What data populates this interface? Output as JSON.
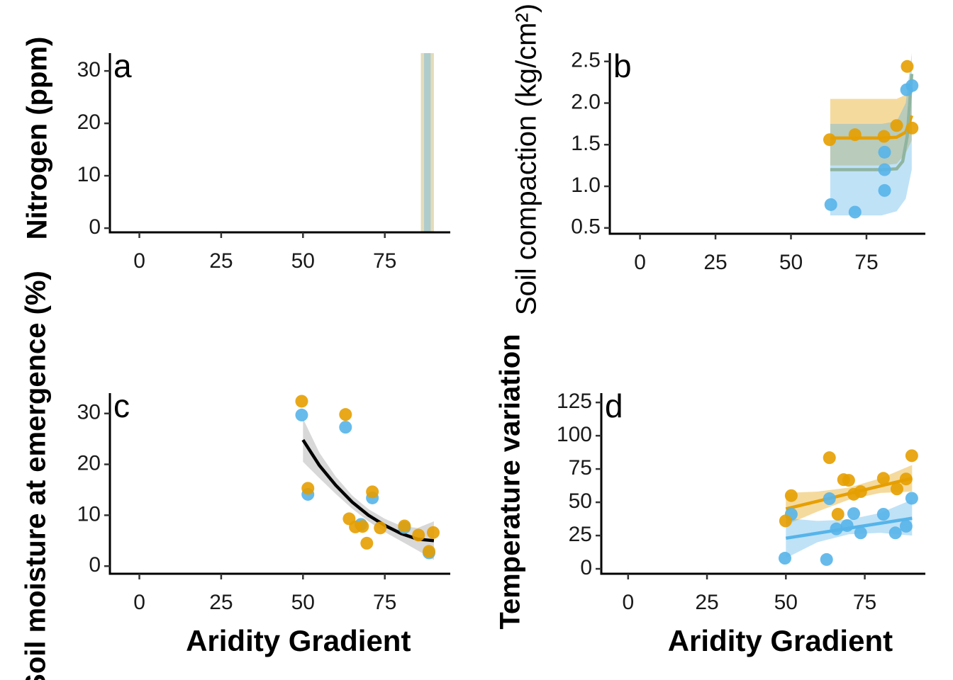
{
  "chart_data": [
    {
      "type": "scatter",
      "label": "a",
      "ylabel": "Nitrogen (ppm)",
      "xlim": [
        -9,
        95
      ],
      "xticks": [
        0,
        25,
        50,
        75
      ],
      "ylim": [
        -0.8,
        33.4
      ],
      "yticks": [
        0,
        10,
        20,
        30
      ],
      "ribbons": [
        {
          "color": "#B8A04A",
          "x": [
            86,
            90
          ],
          "lower": [
            -1,
            -1
          ],
          "upper": [
            34,
            34
          ]
        },
        {
          "color": "#56B4E9",
          "x": [
            87,
            89
          ],
          "lower": [
            -1,
            -1
          ],
          "upper": [
            34,
            34
          ]
        }
      ],
      "lines": [],
      "series": []
    },
    {
      "type": "scatter",
      "label": "b",
      "ylabel": "Soil compaction (kg/cm²)",
      "xlim": [
        -10,
        94.5
      ],
      "xticks": [
        0,
        25,
        50,
        75
      ],
      "ylim": [
        0.43,
        2.6
      ],
      "yticks": [
        {
          "value": 0.5,
          "label": "0.5"
        },
        {
          "value": 1,
          "label": "1.0"
        },
        {
          "value": 1.5,
          "label": "1.5"
        },
        {
          "value": 2,
          "label": "2.0"
        },
        2.5
      ],
      "ribbons": [
        {
          "color": "#E69F00",
          "x": [
            63,
            70,
            80,
            85,
            88,
            90
          ],
          "lower": [
            1.25,
            1.25,
            1.25,
            1.27,
            1.4,
            1.55
          ],
          "upper": [
            2.05,
            2.05,
            2.05,
            2.05,
            2.1,
            2.2
          ]
        },
        {
          "color": "#56B4E9",
          "x": [
            63,
            70,
            80,
            85,
            88,
            90
          ],
          "lower": [
            0.65,
            0.65,
            0.65,
            0.7,
            0.85,
            1.2
          ],
          "upper": [
            1.75,
            1.75,
            1.75,
            1.78,
            2.0,
            2.6
          ]
        }
      ],
      "lines": [
        {
          "color": "#E69F00",
          "x": [
            63,
            70,
            80,
            85,
            88,
            90
          ],
          "values": [
            1.58,
            1.58,
            1.58,
            1.59,
            1.65,
            1.85
          ]
        },
        {
          "color": "#8FB5A0",
          "x": [
            63,
            70,
            80,
            85,
            87,
            88.5,
            90
          ],
          "values": [
            1.2,
            1.2,
            1.2,
            1.21,
            1.3,
            1.6,
            2.35
          ]
        }
      ],
      "series": [
        {
          "color": "#E69F00",
          "x": [
            62.8,
            71.2,
            80.8,
            85,
            88.5,
            90.1
          ],
          "values": [
            1.56,
            1.62,
            1.6,
            1.73,
            2.44,
            1.7
          ]
        },
        {
          "color": "#56B4E9",
          "x": [
            63.2,
            71.2,
            81,
            81,
            81,
            88.3,
            90.1
          ],
          "values": [
            0.78,
            0.69,
            0.95,
            1.2,
            1.41,
            2.16,
            2.21
          ]
        }
      ]
    },
    {
      "type": "scatter",
      "label": "c",
      "ylabel": "Soil moisture at emergence (%)",
      "xlabel": "Aridity Gradient",
      "xlim": [
        -9,
        95
      ],
      "xticks": [
        0,
        25,
        50,
        75
      ],
      "ylim": [
        -1.5,
        34
      ],
      "yticks": [
        0,
        10,
        20,
        30
      ],
      "ribbons": [
        {
          "color": "#999999",
          "x": [
            50,
            55,
            60,
            65,
            70,
            75,
            80,
            85,
            90
          ],
          "lower": [
            20.5,
            17.3,
            14.2,
            11.3,
            8.8,
            6.7,
            4.9,
            3.1,
            1.2
          ],
          "upper": [
            29,
            22.3,
            17.6,
            13.9,
            11.2,
            9.3,
            7.9,
            7.5,
            8.8
          ]
        }
      ],
      "lines": [
        {
          "color": "#000000",
          "x": [
            50,
            55,
            60,
            65,
            70,
            75,
            80,
            85,
            90
          ],
          "values": [
            24.8,
            19.8,
            15.9,
            12.6,
            10,
            8,
            6.4,
            5.3,
            5
          ]
        }
      ],
      "series": [
        {
          "color": "#56B4E9",
          "x": [
            49.6,
            51.5,
            63,
            71.2,
            67.7,
            81,
            88.5
          ],
          "values": [
            29.7,
            14.1,
            27.3,
            13.4,
            8.2,
            7.6,
            2.6
          ]
        },
        {
          "color": "#E69F00",
          "x": [
            49.6,
            51.5,
            63,
            64.1,
            66,
            68.2,
            71.2,
            73.6,
            69.5,
            81,
            85.3,
            89.8,
            88.5
          ],
          "values": [
            32.4,
            15.3,
            29.8,
            9.3,
            7.7,
            7.8,
            14.6,
            7.5,
            4.5,
            7.9,
            6.1,
            6.6,
            2.9
          ]
        }
      ]
    },
    {
      "type": "scatter",
      "label": "d",
      "ylabel": "Temperature variation",
      "xlabel": "Aridity Gradient",
      "xlim": [
        -8.5,
        94.2
      ],
      "xticks": [
        0,
        25,
        50,
        75
      ],
      "ylim": [
        -3.7,
        132
      ],
      "yticks": [
        0,
        25,
        50,
        75,
        100,
        125
      ],
      "ribbons": [
        {
          "color": "#E69F00",
          "x": [
            50,
            60,
            70,
            80,
            90
          ],
          "lower": [
            33,
            43,
            52,
            57,
            58
          ],
          "upper": [
            57,
            58,
            61,
            68,
            78
          ]
        },
        {
          "color": "#56B4E9",
          "x": [
            50,
            60,
            70,
            80,
            90
          ],
          "lower": [
            8,
            20,
            26,
            27,
            25
          ],
          "upper": [
            38,
            36,
            37,
            42,
            52
          ]
        }
      ],
      "lines": [
        {
          "color": "#E69F00",
          "x": [
            50,
            90
          ],
          "values": [
            45,
            68
          ]
        },
        {
          "color": "#56B4E9",
          "x": [
            50,
            90
          ],
          "values": [
            23,
            38
          ]
        }
      ],
      "series": [
        {
          "color": "#56B4E9",
          "x": [
            49.7,
            51.7,
            62.9,
            63.8,
            66,
            69.4,
            71.5,
            73.7,
            80.9,
            84.7,
            88.1,
            89.9
          ],
          "values": [
            8,
            41,
            7,
            52.7,
            30,
            32.5,
            41.5,
            27,
            41,
            27,
            32,
            53
          ]
        },
        {
          "color": "#E69F00",
          "x": [
            49.9,
            51.7,
            63.8,
            66.5,
            68.3,
            69.9,
            71.5,
            73.7,
            80.9,
            85.2,
            88.1,
            89.9
          ],
          "values": [
            36,
            55,
            83.5,
            41,
            67,
            66.5,
            56,
            58,
            68,
            60,
            67.5,
            85
          ]
        }
      ]
    }
  ]
}
